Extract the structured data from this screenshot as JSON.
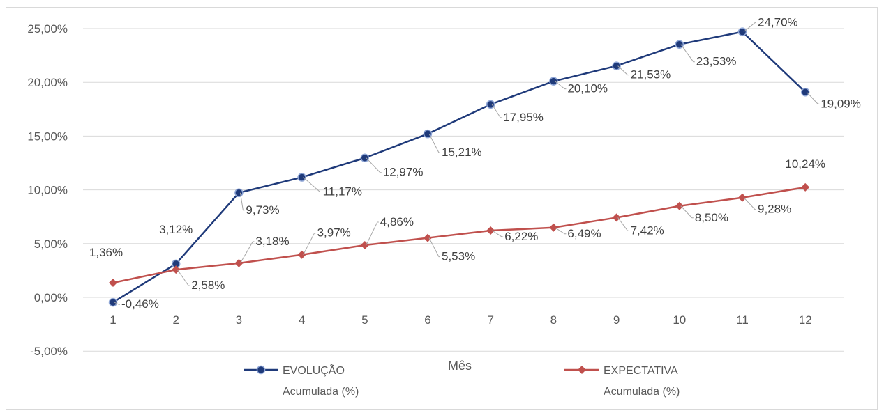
{
  "chart_data": {
    "type": "line",
    "title": "",
    "xlabel": "Mês",
    "ylabel": "",
    "categories": [
      "1",
      "2",
      "3",
      "4",
      "5",
      "6",
      "7",
      "8",
      "9",
      "10",
      "11",
      "12"
    ],
    "ylim": [
      -5,
      25
    ],
    "yticks": [
      "25,00%",
      "20,00%",
      "15,00%",
      "10,00%",
      "5,00%",
      "0,00%",
      "-5,00%"
    ],
    "ytick_values": [
      25,
      20,
      15,
      10,
      5,
      0,
      -5
    ],
    "grid": true,
    "legend_position": "bottom",
    "series": [
      {
        "name_line1": "EVOLUÇÃO",
        "name_line2": "Acumulada (%)",
        "color": "#1f3a7a",
        "marker": "circle",
        "values": [
          -0.46,
          3.12,
          9.73,
          11.17,
          12.97,
          15.21,
          17.95,
          20.1,
          21.53,
          23.53,
          24.7,
          19.09
        ],
        "labels": [
          "-0,46%",
          "3,12%",
          "9,73%",
          "11,17%",
          "12,97%",
          "15,21%",
          "17,95%",
          "20,10%",
          "21,53%",
          "23,53%",
          "24,70%",
          "19,09%"
        ]
      },
      {
        "name_line1": "EXPECTATIVA",
        "name_line2": "Acumulada (%)",
        "color": "#c0504d",
        "marker": "diamond",
        "values": [
          1.36,
          2.58,
          3.18,
          3.97,
          4.86,
          5.53,
          6.22,
          6.49,
          7.42,
          8.5,
          9.28,
          10.24
        ],
        "labels": [
          "1,36%",
          "2,58%",
          "3,18%",
          "3,97%",
          "4,86%",
          "5,53%",
          "6,22%",
          "6,49%",
          "7,42%",
          "8,50%",
          "9,28%",
          "10,24%"
        ]
      }
    ]
  }
}
